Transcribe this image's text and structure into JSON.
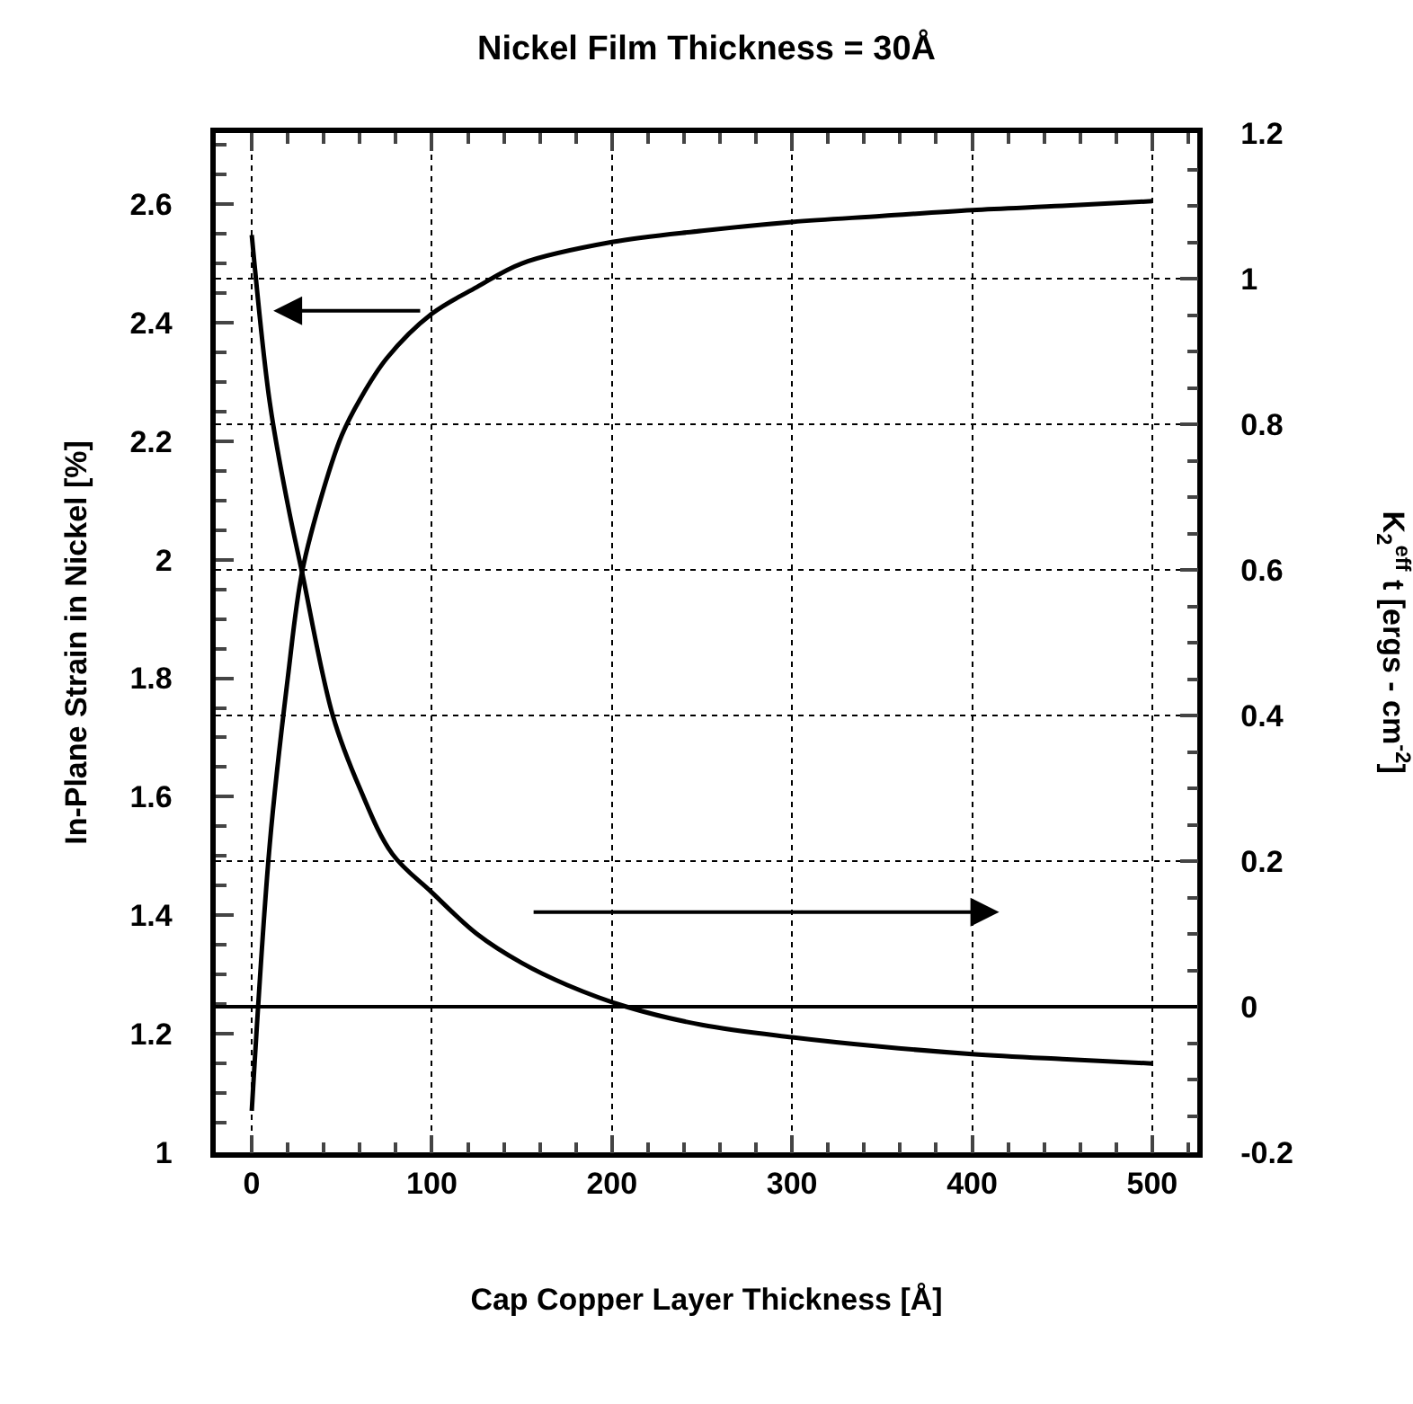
{
  "chart_data": {
    "type": "line",
    "title": "Nickel Film Thickness = 30Å",
    "xlabel": "Cap Copper Layer Thickness [Å]",
    "ylabel": "In-Plane Strain in Nickel [%]",
    "y2label": "K$_{2}$$^{eff}$ t [ergs - cm$^{-2}$]",
    "series": [
      {
        "color": "#000000",
        "x": [
          0,
          10,
          20,
          28,
          40,
          50,
          60,
          75,
          100,
          125,
          150,
          200,
          250,
          300,
          350,
          400,
          450,
          500
        ],
        "values": [
          1.07,
          1.52,
          1.8,
          1.98,
          2.12,
          2.21,
          2.27,
          2.34,
          2.415,
          2.46,
          2.5,
          2.536,
          2.555,
          2.57,
          2.58,
          2.59,
          2.597,
          2.605
        ]
      },
      {
        "color": "#000000",
        "axis": "y2",
        "x": [
          0,
          10,
          20,
          28,
          45,
          60,
          78,
          100,
          125,
          150,
          175,
          208,
          250,
          300,
          350,
          400,
          450,
          500
        ],
        "values": [
          1.06,
          0.83,
          0.69,
          0.596,
          0.4,
          0.3,
          0.21,
          0.157,
          0.1,
          0.06,
          0.03,
          0.0,
          -0.025,
          -0.042,
          -0.055,
          -0.065,
          -0.072,
          -0.078
        ]
      }
    ],
    "xlim": [
      -20,
      525
    ],
    "xticks": [
      0,
      100,
      200,
      300,
      400,
      500
    ],
    "ylim": [
      1,
      2.72
    ],
    "yticks": [
      1,
      1.2,
      1.4,
      1.6,
      1.8,
      2,
      2.2,
      2.4,
      2.6
    ],
    "y2lim": [
      -0.2,
      1.2
    ],
    "y2ticks": [
      -0.2,
      0,
      0.2,
      0.4,
      0.6,
      0.8,
      1,
      1.2
    ],
    "ref_lines": [
      {
        "axis": "y2",
        "value": 0,
        "color": "#000000",
        "line_style": "solid"
      }
    ],
    "grid": true,
    "marker": "none",
    "line_style": "solid"
  }
}
